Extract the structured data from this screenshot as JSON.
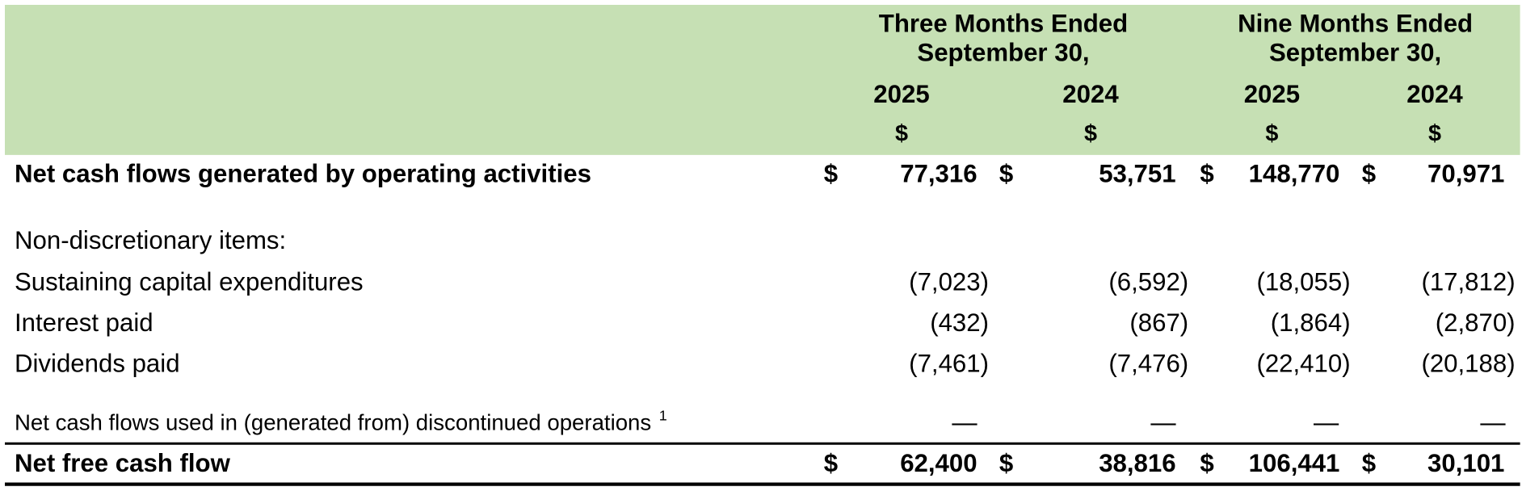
{
  "header": {
    "groups": [
      {
        "line1": "Three Months Ended",
        "line2": "September 30,"
      },
      {
        "line1": "Nine Months Ended",
        "line2": "September 30,"
      }
    ],
    "years": [
      "2025",
      "2024",
      "2025",
      "2024"
    ],
    "currency": [
      "$",
      "$",
      "$",
      "$"
    ]
  },
  "table": {
    "rows": [
      {
        "label": "Net cash flows generated by operating activities",
        "dollar_signs": [
          "$",
          "$",
          "$",
          "$"
        ],
        "values": [
          "77,316",
          "53,751",
          "148,770",
          "70,971"
        ]
      },
      {
        "label": "Non-discretionary items:"
      },
      {
        "label": "Sustaining capital expenditures",
        "values": [
          "(7,023)",
          "(6,592)",
          "(18,055)",
          "(17,812)"
        ]
      },
      {
        "label": "Interest paid",
        "values": [
          "(432)",
          "(867)",
          "(1,864)",
          "(2,870)"
        ]
      },
      {
        "label": "Dividends paid",
        "values": [
          "(7,461)",
          "(7,476)",
          "(22,410)",
          "(20,188)"
        ]
      },
      {
        "label": "Net cash flows used in (generated from) discontinued operations",
        "footnote": "1",
        "values": [
          "—",
          "—",
          "—",
          "—"
        ]
      },
      {
        "label": "Net free cash flow",
        "dollar_signs": [
          "$",
          "$",
          "$",
          "$"
        ],
        "values": [
          "62,400",
          "38,816",
          "106,441",
          "30,101"
        ]
      }
    ]
  }
}
